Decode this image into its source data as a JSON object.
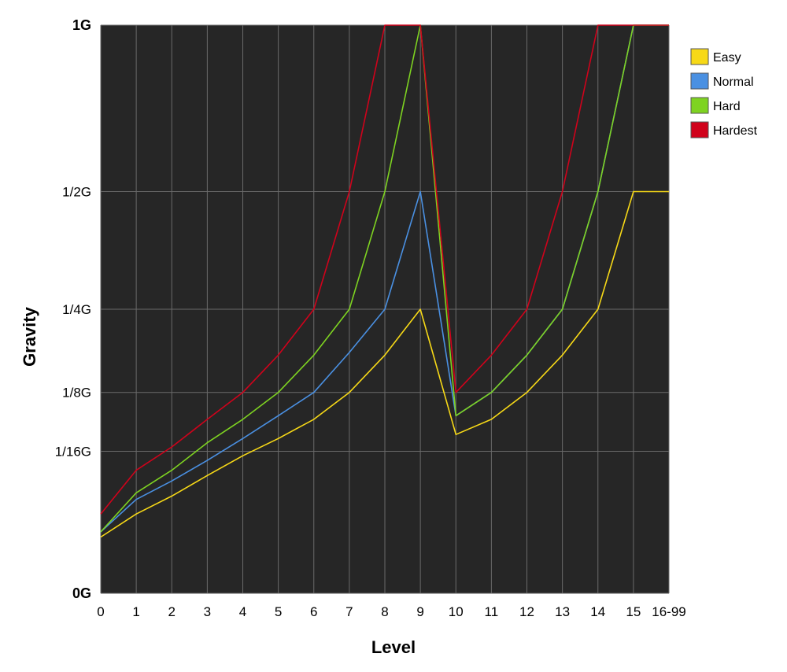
{
  "chart_data": {
    "type": "line",
    "xlabel": "Level",
    "ylabel": "Gravity",
    "x_ticks": [
      "0",
      "1",
      "2",
      "3",
      "4",
      "5",
      "6",
      "7",
      "8",
      "9",
      "10",
      "11",
      "12",
      "13",
      "14",
      "15",
      "16-99"
    ],
    "y_ticks": [
      {
        "label": "0G",
        "value": 0,
        "bold": true
      },
      {
        "label": "1/16G",
        "value": 0.0625,
        "bold": false
      },
      {
        "label": "1/8G",
        "value": 0.125,
        "bold": false
      },
      {
        "label": "1/4G",
        "value": 0.25,
        "bold": false
      },
      {
        "label": "1/2G",
        "value": 0.5,
        "bold": false
      },
      {
        "label": "1G",
        "value": 1,
        "bold": true
      }
    ],
    "y_scale": "sqrt",
    "ylim": [
      0,
      1
    ],
    "grid": true,
    "legend_position": "top-right",
    "plot_background": "#262626",
    "grid_color": "#6a6a6a",
    "series": [
      {
        "name": "Easy",
        "color": "#f7d917",
        "values": [
          0.0098,
          0.0195,
          0.0293,
          0.043,
          0.0586,
          0.0742,
          0.0938,
          0.125,
          0.1758,
          0.25,
          0.0781,
          0.0938,
          0.125,
          0.1758,
          0.25,
          0.5,
          0.5
        ]
      },
      {
        "name": "Normal",
        "color": "#4a90e2",
        "values": [
          0.0117,
          0.0273,
          0.0391,
          0.0547,
          0.0742,
          0.0977,
          0.125,
          0.1797,
          0.25,
          0.5,
          0.0977,
          0.125,
          0.1758,
          0.25,
          0.5,
          1,
          1
        ]
      },
      {
        "name": "Hard",
        "color": "#7ed321",
        "values": [
          0.0117,
          0.0313,
          0.0469,
          0.0703,
          0.0938,
          0.125,
          0.1758,
          0.25,
          0.5,
          1,
          0.0977,
          0.125,
          0.1758,
          0.25,
          0.5,
          1,
          1
        ]
      },
      {
        "name": "Hardest",
        "color": "#d0021b",
        "values": [
          0.0195,
          0.0469,
          0.0664,
          0.0938,
          0.125,
          0.1758,
          0.25,
          0.5,
          1,
          1,
          0.125,
          0.1758,
          0.25,
          0.5,
          1,
          1,
          1
        ]
      }
    ]
  }
}
